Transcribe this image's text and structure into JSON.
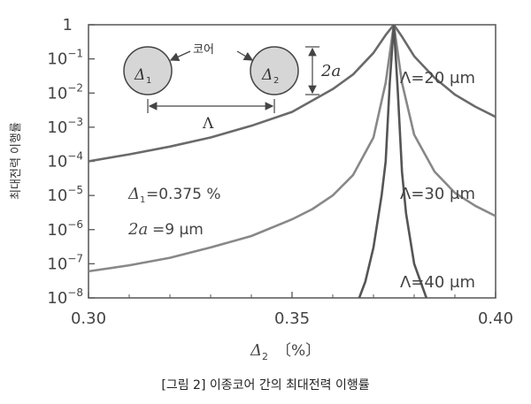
{
  "chart_data": {
    "type": "line",
    "xlabel_symbol": "Δ",
    "xlabel_sub": "2",
    "xlabel_unit": "〔%〕",
    "ylabel": "최대전력 이행률",
    "x_ticks": [
      "0.30",
      "0.35",
      "0.40"
    ],
    "xlim": [
      0.3,
      0.4
    ],
    "ylim_log10": [
      -8,
      0
    ],
    "y_scale": "log",
    "y_ticks": [
      {
        "base": "1",
        "exp": ""
      },
      {
        "base": "10",
        "exp": "−1"
      },
      {
        "base": "10",
        "exp": "−2"
      },
      {
        "base": "10",
        "exp": "−3"
      },
      {
        "base": "10",
        "exp": "−4"
      },
      {
        "base": "10",
        "exp": "−5"
      },
      {
        "base": "10",
        "exp": "−6"
      },
      {
        "base": "10",
        "exp": "−7"
      },
      {
        "base": "10",
        "exp": "−8"
      }
    ],
    "peak_x": 0.375,
    "series": [
      {
        "name": "Λ=20 μm",
        "color": "#6a6a6a",
        "x": [
          0.3,
          0.31,
          0.32,
          0.33,
          0.34,
          0.35,
          0.36,
          0.365,
          0.37,
          0.373,
          0.375,
          0.377,
          0.38,
          0.385,
          0.39,
          0.395,
          0.4
        ],
        "y": [
          0.0001,
          0.00016,
          0.00027,
          0.0005,
          0.0011,
          0.0028,
          0.013,
          0.035,
          0.15,
          0.5,
          1.0,
          0.45,
          0.12,
          0.028,
          0.009,
          0.004,
          0.002
        ]
      },
      {
        "name": "Λ=30 μm",
        "color": "#888888",
        "x": [
          0.3,
          0.31,
          0.32,
          0.33,
          0.34,
          0.35,
          0.355,
          0.36,
          0.365,
          0.37,
          0.373,
          0.375,
          0.377,
          0.38,
          0.385,
          0.39,
          0.395,
          0.4
        ],
        "y": [
          6e-08,
          9e-08,
          1.5e-07,
          3e-07,
          6.5e-07,
          2e-06,
          4e-06,
          1e-05,
          4e-05,
          0.0005,
          0.02,
          1.0,
          0.02,
          0.0006,
          5e-05,
          1.2e-05,
          5e-06,
          2.5e-06
        ]
      },
      {
        "name": "Λ=40 μm",
        "color": "#555555",
        "x": [
          0.3665,
          0.368,
          0.37,
          0.372,
          0.373,
          0.374,
          0.375,
          0.376,
          0.377,
          0.378,
          0.38,
          0.383
        ],
        "y": [
          1e-08,
          3e-08,
          3e-07,
          1e-05,
          0.0001,
          0.02,
          1.0,
          0.01,
          5e-05,
          3e-06,
          1e-07,
          1e-08
        ]
      }
    ],
    "annotations": {
      "core_label": "코어",
      "delta1_symbol": "Δ",
      "delta1_sub": "1",
      "delta2_symbol": "Δ",
      "delta2_sub": "2",
      "spacing_symbol": "Λ",
      "diameter_label": "2a",
      "param_delta1_value": "=0.375 %",
      "param_2a_value": "=9 μm"
    }
  },
  "caption": "[그림 2] 이종코어 간의 최대전력 이행률",
  "colors": {
    "axis": "#555555",
    "core_fill": "#d6d6d6",
    "core_stroke": "#444444"
  }
}
